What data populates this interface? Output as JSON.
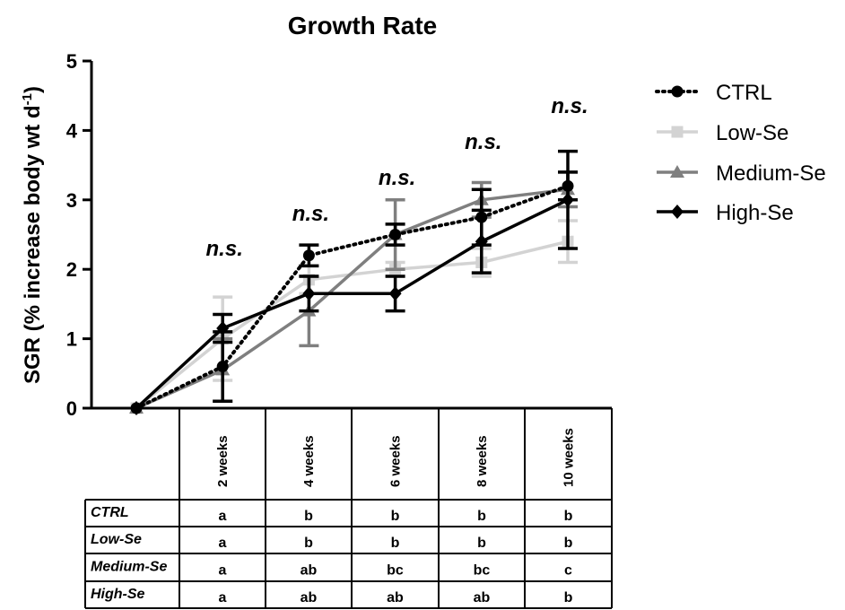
{
  "chart_data": {
    "type": "line",
    "title": "Growth Rate",
    "ylabel_main": "SGR (% increase body wt d",
    "ylabel_sup": "-1",
    "ylabel_end": ")",
    "ylim": [
      0,
      5
    ],
    "yticks": [
      "0",
      "1",
      "2",
      "3",
      "4",
      "5"
    ],
    "categories": [
      "2 weeks",
      "4 weeks",
      "6 weeks",
      "8 weeks",
      "10 weeks"
    ],
    "x": [
      0,
      2,
      4,
      6,
      8,
      10
    ],
    "annotations": [
      "n.s.",
      "n.s.",
      "n.s.",
      "n.s.",
      "n.s."
    ],
    "series": [
      {
        "name": "CTRL",
        "color": "#000000",
        "line": "dotted",
        "marker": "circle",
        "values": [
          0,
          0.6,
          2.2,
          2.5,
          2.75,
          3.2
        ],
        "errors": [
          0,
          0.5,
          0.15,
          0.15,
          0.4,
          0.2
        ]
      },
      {
        "name": "Low-Se",
        "color": "#d3d3d3",
        "line": "solid",
        "marker": "square",
        "values": [
          0,
          1.0,
          1.85,
          2.0,
          2.1,
          2.4
        ],
        "errors": [
          0,
          0.6,
          0.2,
          0.1,
          0.2,
          0.3
        ]
      },
      {
        "name": "Medium-Se",
        "color": "#7f7f7f",
        "line": "solid",
        "marker": "triangle",
        "values": [
          0,
          0.55,
          1.4,
          2.5,
          3.0,
          3.15
        ],
        "errors": [
          0,
          0.45,
          0.5,
          0.5,
          0.25,
          0.25
        ]
      },
      {
        "name": "High-Se",
        "color": "#000000",
        "line": "solid",
        "marker": "diamond",
        "values": [
          0,
          1.15,
          1.65,
          1.65,
          2.4,
          3.0
        ],
        "errors": [
          0,
          0.2,
          0.25,
          0.25,
          0.45,
          0.7
        ]
      }
    ],
    "table": {
      "rows": [
        {
          "label": "CTRL",
          "cells": [
            "a",
            "b",
            "b",
            "b",
            "b"
          ]
        },
        {
          "label": "Low-Se",
          "cells": [
            "a",
            "b",
            "b",
            "b",
            "b"
          ]
        },
        {
          "label": "Medium-Se",
          "cells": [
            "a",
            "ab",
            "bc",
            "bc",
            "c"
          ]
        },
        {
          "label": "High-Se",
          "cells": [
            "a",
            "ab",
            "ab",
            "ab",
            "b"
          ]
        }
      ]
    },
    "legend_position": "right"
  }
}
